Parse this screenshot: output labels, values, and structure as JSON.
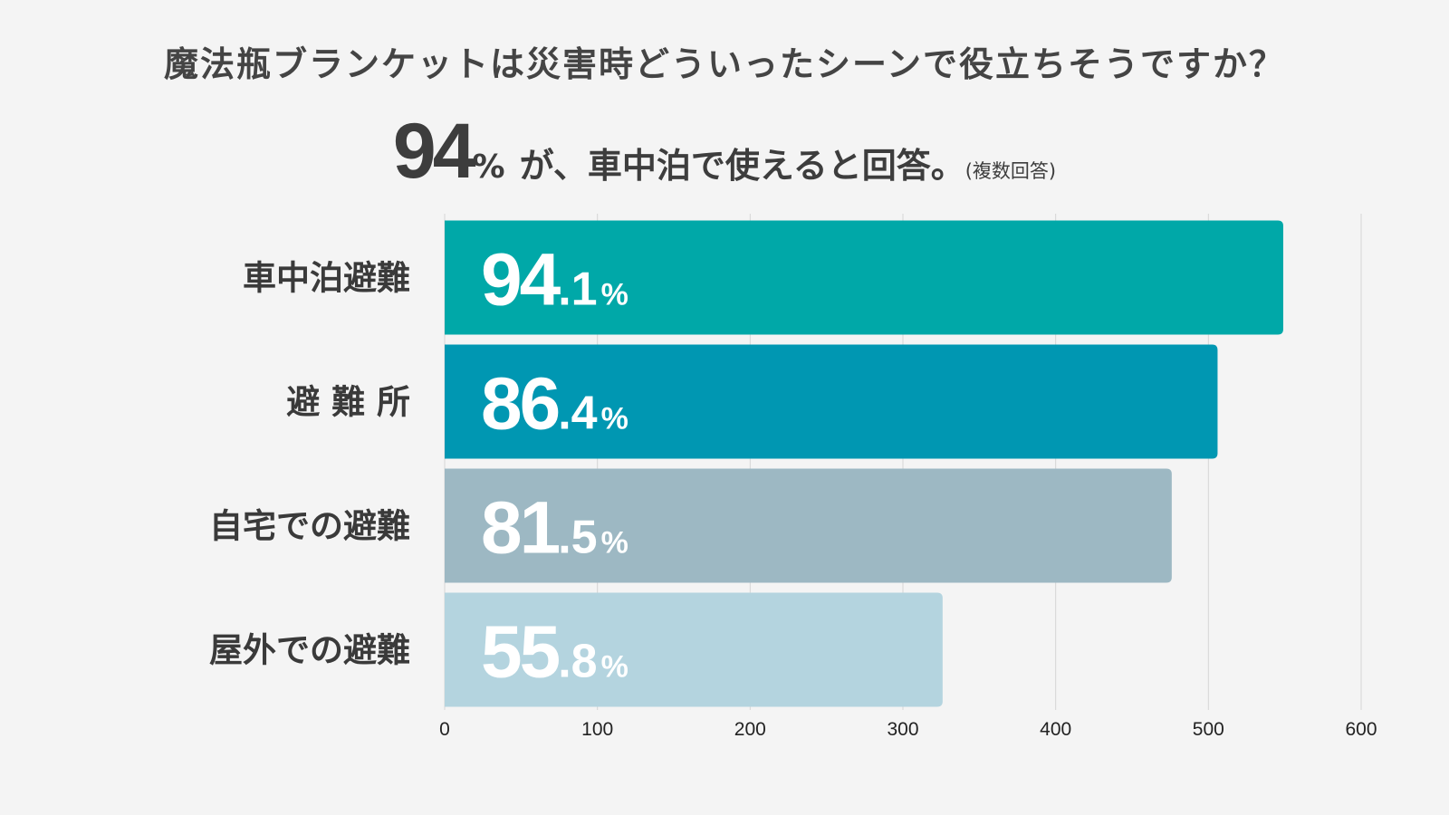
{
  "title": "魔法瓶ブランケットは災害時どういったシーンで役立ちそうですか？",
  "headline": {
    "big_number": "94",
    "percent_sign": "%",
    "text": "が、車中泊で使えると回答。",
    "note": "(複数回答)"
  },
  "chart_data": {
    "type": "bar",
    "orientation": "horizontal",
    "categories": [
      "車中泊避難",
      "避 難 所",
      "自宅での避難",
      "屋外での避難"
    ],
    "values": [
      549,
      506,
      476,
      326
    ],
    "percent_labels": [
      {
        "int": "94",
        "dec": ".1",
        "pct": "%"
      },
      {
        "int": "86",
        "dec": ".4",
        "pct": "%"
      },
      {
        "int": "81",
        "dec": ".5",
        "pct": "%"
      },
      {
        "int": "55",
        "dec": ".8",
        "pct": "%"
      }
    ],
    "colors": [
      "#00a8a8",
      "#0097b2",
      "#9db8c3",
      "#b4d4df"
    ],
    "xlim": [
      0,
      600
    ],
    "xticks": [
      0,
      100,
      200,
      300,
      400,
      500,
      600
    ],
    "grid": true
  }
}
